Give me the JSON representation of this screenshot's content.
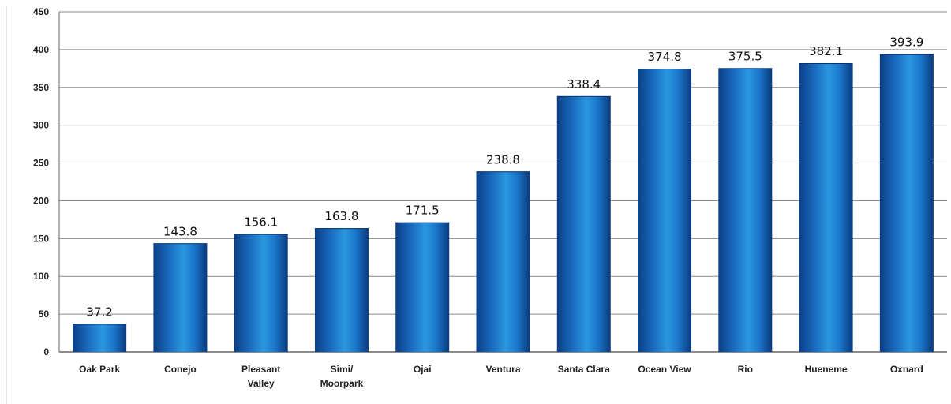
{
  "chart_data": {
    "type": "bar",
    "title": "",
    "xlabel": "",
    "ylabel": "",
    "ylim": [
      0,
      450
    ],
    "yticks": [
      "0",
      "50",
      "100",
      "150",
      "200",
      "250",
      "300",
      "350",
      "400",
      "450"
    ],
    "grid": true,
    "categories": [
      [
        "Oak Park"
      ],
      [
        "Conejo"
      ],
      [
        "Pleasant",
        "Valley"
      ],
      [
        "Simi/",
        "Moorpark"
      ],
      [
        "Ojai"
      ],
      [
        "Ventura"
      ],
      [
        "Santa  Clara"
      ],
      [
        "Ocean View"
      ],
      [
        "Rio"
      ],
      [
        "Hueneme"
      ],
      [
        "Oxnard"
      ]
    ],
    "values": [
      37.2,
      143.8,
      156.1,
      163.8,
      171.5,
      238.8,
      338.4,
      374.8,
      375.5,
      382.1,
      393.9
    ],
    "data_labels": [
      "37.2",
      "143.8",
      "156.1",
      "163.8",
      "171.5",
      "238.8",
      "338.4",
      "374.8",
      "375.5",
      "382.1",
      "393.9"
    ],
    "colors": {
      "bar_dark": "#0b3f86",
      "bar_mid": "#1e8ad6",
      "bar_light": "#4fb3f0",
      "grid": "#8c8c8c",
      "axis": "#666666"
    }
  }
}
